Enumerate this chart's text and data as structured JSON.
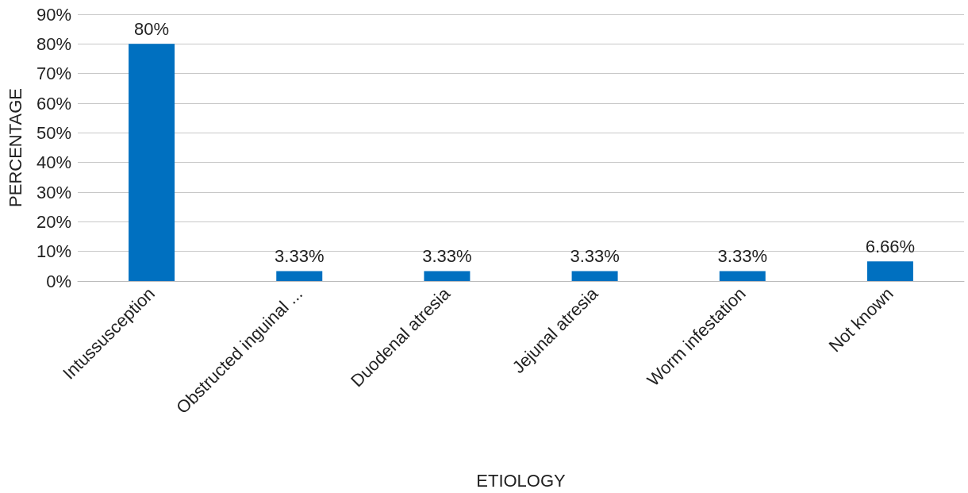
{
  "chart_data": {
    "type": "bar",
    "xlabel": "ETIOLOGY",
    "ylabel": "PERCENTAGE",
    "categories": [
      "Intussusception",
      "Obstructed inguinal ...",
      "Duodenal atresia",
      "Jejunal atresia",
      "Worm infestation",
      "Not known"
    ],
    "values": [
      80,
      3.33,
      3.33,
      3.33,
      3.33,
      6.66
    ],
    "value_labels": [
      "80%",
      "3.33%",
      "3.33%",
      "3.33%",
      "3.33%",
      "6.66%"
    ],
    "color": "#0070c0",
    "ylim": [
      0,
      90
    ],
    "yticks": [
      {
        "value": 0,
        "label": "0%"
      },
      {
        "value": 10,
        "label": "10%"
      },
      {
        "value": 20,
        "label": "20%"
      },
      {
        "value": 30,
        "label": "30%"
      },
      {
        "value": 40,
        "label": "40%"
      },
      {
        "value": 50,
        "label": "50%"
      },
      {
        "value": 60,
        "label": "60%"
      },
      {
        "value": 70,
        "label": "70%"
      },
      {
        "value": 80,
        "label": "80%"
      },
      {
        "value": 90,
        "label": "90%"
      }
    ],
    "grid": "y"
  }
}
